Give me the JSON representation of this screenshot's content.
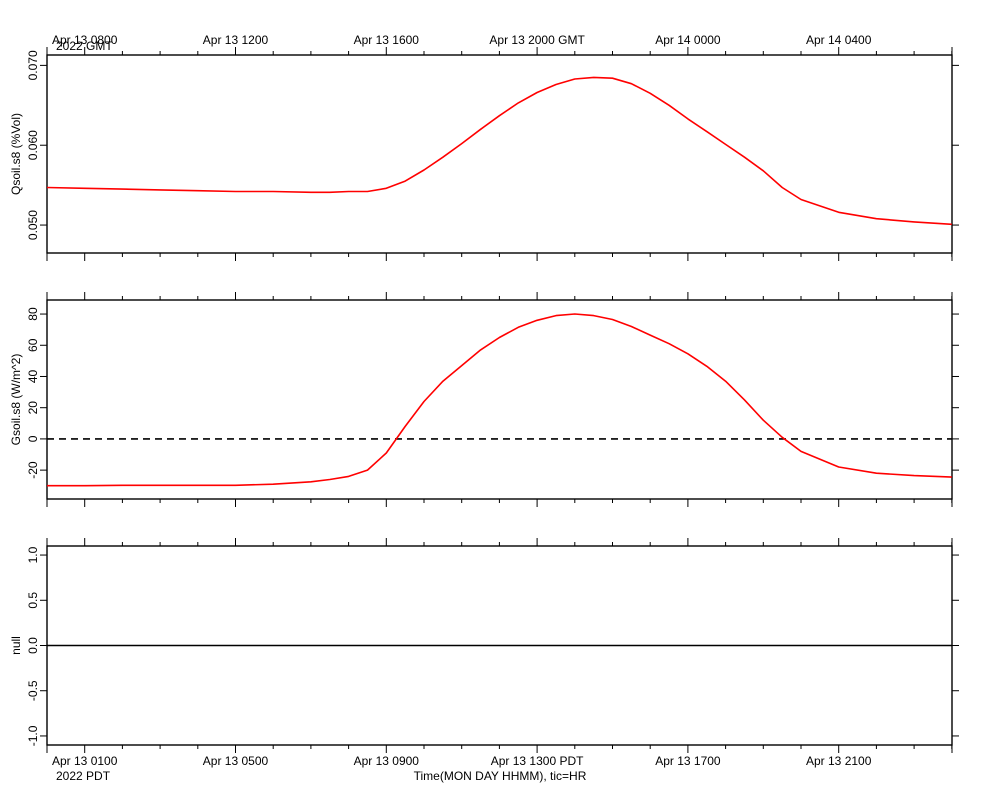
{
  "figure": {
    "gmt_year_label": "2022 GMT",
    "pdt_year_label": "2022 PDT",
    "xlabel": "Time(MON DAY HHMM), tic=HR",
    "gmt_tick_labels": [
      "Apr 13 0800",
      "Apr 13 1200",
      "Apr 13 1600",
      "Apr 13 2000 GMT",
      "Apr 14 0000",
      "Apr 14 0400"
    ],
    "pdt_tick_labels": [
      "Apr 13 0100",
      "Apr 13 0500",
      "Apr 13 0900",
      "Apr 13 1300 PDT",
      "Apr 13 1700",
      "Apr 13 2100"
    ]
  },
  "chart_data": [
    {
      "type": "line",
      "ylabel": "Qsoil.s8 (%Vol)",
      "x_hours_pdt": [
        0,
        1,
        2,
        3,
        4,
        5,
        6,
        7,
        7.5,
        8,
        8.5,
        9,
        9.5,
        10,
        10.5,
        11,
        11.5,
        12,
        12.5,
        13,
        13.5,
        14,
        14.5,
        15,
        15.5,
        16,
        16.5,
        17,
        17.5,
        18,
        18.5,
        19,
        19.5,
        20,
        21,
        22,
        23,
        24
      ],
      "series": [
        {
          "values": [
            0.0547,
            0.0546,
            0.0545,
            0.0544,
            0.0543,
            0.0542,
            0.0542,
            0.0541,
            0.0541,
            0.0542,
            0.0542,
            0.0546,
            0.0555,
            0.0569,
            0.0585,
            0.0602,
            0.062,
            0.0637,
            0.0653,
            0.0666,
            0.0676,
            0.0683,
            0.0685,
            0.0684,
            0.0677,
            0.0665,
            0.065,
            0.0633,
            0.0617,
            0.0601,
            0.0585,
            0.0568,
            0.0547,
            0.0532,
            0.0516,
            0.0508,
            0.0504,
            0.0501
          ],
          "color": "#ff0000"
        }
      ],
      "ylim": [
        0.0465,
        0.0713
      ],
      "yticks": [
        0.05,
        0.06,
        0.07
      ],
      "ytick_labels": [
        "0.050",
        "0.060",
        "0.070"
      ],
      "reference_line": null
    },
    {
      "type": "line",
      "ylabel": "Gsoil.s8 (W/m^2)",
      "x_hours_pdt": [
        0,
        1,
        2,
        3,
        4,
        5,
        6,
        7,
        7.5,
        8,
        8.5,
        9,
        9.5,
        10,
        10.5,
        11,
        11.5,
        12,
        12.5,
        13,
        13.5,
        14,
        14.5,
        15,
        15.5,
        16,
        16.5,
        17,
        17.5,
        18,
        18.5,
        19,
        19.5,
        20,
        21,
        22,
        23,
        24
      ],
      "series": [
        {
          "values": [
            -30,
            -30,
            -29.7,
            -29.7,
            -29.7,
            -29.7,
            -29,
            -27.5,
            -26,
            -24,
            -20,
            -9,
            8,
            24,
            37,
            47,
            57,
            65,
            71.5,
            76,
            79,
            80,
            79,
            76.5,
            72,
            66.5,
            61,
            54.5,
            46.5,
            37,
            25,
            12,
            1,
            -8,
            -18,
            -22,
            -23.5,
            -24.5
          ],
          "color": "#ff0000"
        }
      ],
      "ylim": [
        -38.5,
        89
      ],
      "yticks": [
        -20,
        0,
        20,
        40,
        60,
        80
      ],
      "ytick_labels": [
        "-20",
        "0",
        "20",
        "40",
        "60",
        "80"
      ],
      "reference_line": {
        "y": 0,
        "style": "dashed",
        "color": "#000000"
      }
    },
    {
      "type": "line",
      "ylabel": "null",
      "x_hours_pdt": [
        0,
        24
      ],
      "series": [
        {
          "values": [
            0,
            0
          ],
          "color": "#000000"
        }
      ],
      "ylim": [
        -1.1,
        1.1
      ],
      "yticks": [
        -1.0,
        -0.5,
        0.0,
        0.5,
        1.0
      ],
      "ytick_labels": [
        "-1.0",
        "-0.5",
        "0.0",
        "0.5",
        "1.0"
      ],
      "reference_line": null
    }
  ]
}
